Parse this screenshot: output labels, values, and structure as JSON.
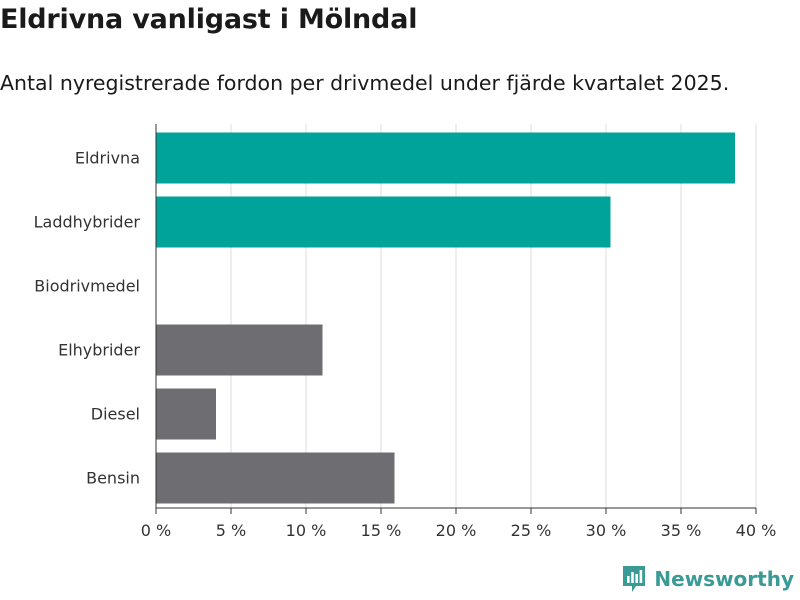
{
  "title": "Eldrivna vanligast i Mölndal",
  "subtitle": "Antal nyregistrerade fordon per drivmedel under fjärde kvartalet 2025.",
  "brand": "Newsworthy",
  "colors": {
    "highlight": "#00a39a",
    "muted": "#6e6d72",
    "grid": "#dddddd",
    "axis": "#333333"
  },
  "chart_data": {
    "type": "bar",
    "orientation": "horizontal",
    "title": "Eldrivna vanligast i Mölndal",
    "subtitle": "Antal nyregistrerade fordon per drivmedel under fjärde kvartalet 2025.",
    "categories": [
      "Eldrivna",
      "Laddhybrider",
      "Biodrivmedel",
      "Elhybrider",
      "Diesel",
      "Bensin"
    ],
    "values": [
      38.6,
      30.3,
      0,
      11.1,
      4.0,
      15.9
    ],
    "highlighted": [
      true,
      true,
      false,
      false,
      false,
      false
    ],
    "unit": "%",
    "xlim": [
      0,
      40
    ],
    "xticks": [
      0,
      5,
      10,
      15,
      20,
      25,
      30,
      35,
      40
    ],
    "xtick_labels": [
      "0 %",
      "5 %",
      "10 %",
      "15 %",
      "20 %",
      "25 %",
      "30 %",
      "35 %",
      "40 %"
    ],
    "xlabel": "",
    "ylabel": "",
    "grid": true,
    "legend": "none"
  }
}
